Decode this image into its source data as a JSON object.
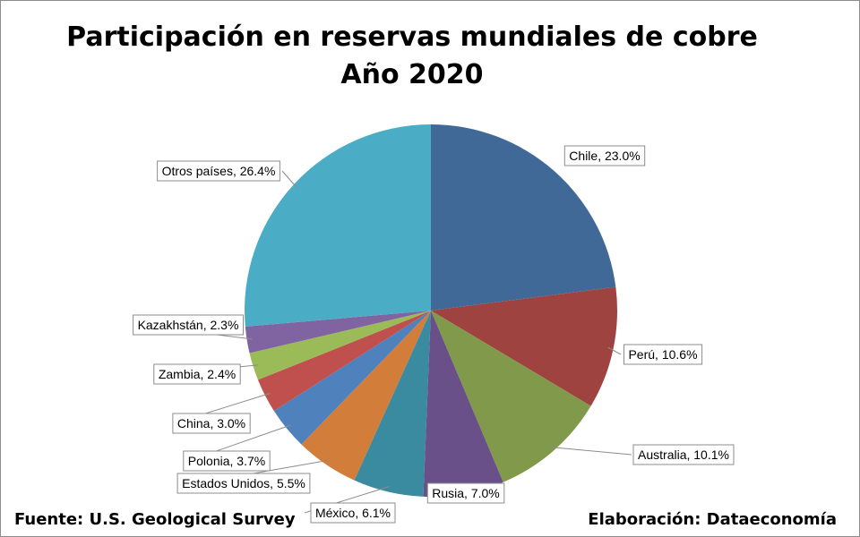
{
  "title_line1": "Participación en reservas mundiales de cobre",
  "title_line2": "Año 2020",
  "source": "Fuente: U.S. Geological Survey",
  "credit": "Elaboración: Dataeconomía",
  "chart_data": {
    "type": "pie",
    "title": "Participación en reservas mundiales de cobre Año 2020",
    "start": "12 o'clock",
    "direction": "clockwise",
    "categories": [
      "Chile",
      "Perú",
      "Australia",
      "Rusia",
      "México",
      "Estados Unidos",
      "Polonia",
      "China",
      "Zambia",
      "Kazakhstán",
      "Otros países"
    ],
    "values": [
      23.0,
      10.6,
      10.1,
      7.0,
      6.1,
      5.5,
      3.7,
      3.0,
      2.4,
      2.3,
      26.4
    ],
    "labels": [
      "Chile, 23.0%",
      "Perú, 10.6%",
      "Australia, 10.1%",
      "Rusia, 7.0%",
      "México, 6.1%",
      "Estados Unidos, 5.5%",
      "Polonia, 3.7%",
      "China, 3.0%",
      "Zambia, 2.4%",
      "Kazakhstán, 2.3%",
      "Otros países, 26.4%"
    ],
    "colors": [
      "#416998",
      "#9e4340",
      "#81994a",
      "#6a5089",
      "#3a8aa0",
      "#d27d39",
      "#4f81bd",
      "#c0504d",
      "#9bbb59",
      "#8064a2",
      "#4bacc6"
    ]
  }
}
